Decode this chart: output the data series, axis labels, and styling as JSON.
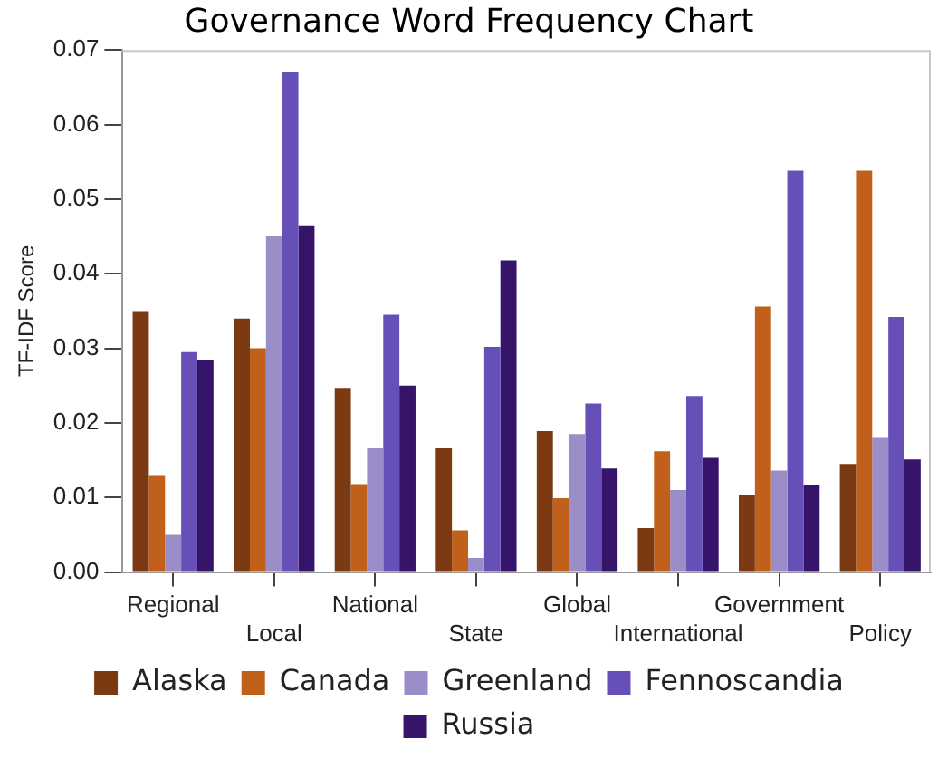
{
  "chart_data": {
    "type": "bar",
    "title": "Governance Word Frequency Chart",
    "ylabel": "TF-IDF Score",
    "categories": [
      "Regional",
      "Local",
      "National",
      "State",
      "Global",
      "International",
      "Government",
      "Policy"
    ],
    "series": [
      {
        "name": "Alaska",
        "color": "#7b3a12",
        "values": [
          0.035,
          0.034,
          0.0247,
          0.0166,
          0.0189,
          0.0059,
          0.0103,
          0.0145
        ]
      },
      {
        "name": "Canada",
        "color": "#c0601a",
        "values": [
          0.013,
          0.03,
          0.0118,
          0.0056,
          0.0099,
          0.0162,
          0.0356,
          0.0538
        ]
      },
      {
        "name": "Greenland",
        "color": "#9b8ec8",
        "values": [
          0.005,
          0.045,
          0.0166,
          0.0019,
          0.0185,
          0.011,
          0.0136,
          0.018
        ]
      },
      {
        "name": "Fennoscandia",
        "color": "#6650b8",
        "values": [
          0.0295,
          0.067,
          0.0345,
          0.0302,
          0.0226,
          0.0236,
          0.0538,
          0.0342
        ]
      },
      {
        "name": "Russia",
        "color": "#35146a",
        "values": [
          0.0285,
          0.0465,
          0.025,
          0.0418,
          0.0139,
          0.0153,
          0.0116,
          0.0151
        ]
      }
    ],
    "ylim": [
      0,
      0.07
    ],
    "yticks": [
      {
        "value": 0,
        "label": "0.00"
      },
      {
        "value": 0.01,
        "label": "0.01"
      },
      {
        "value": 0.02,
        "label": "0.02"
      },
      {
        "value": 0.03,
        "label": "0.03"
      },
      {
        "value": 0.04,
        "label": "0.04"
      },
      {
        "value": 0.05,
        "label": "0.05"
      },
      {
        "value": 0.06,
        "label": "0.06"
      },
      {
        "value": 0.07,
        "label": "0.07"
      }
    ],
    "grid": false,
    "legend": "bottom"
  }
}
